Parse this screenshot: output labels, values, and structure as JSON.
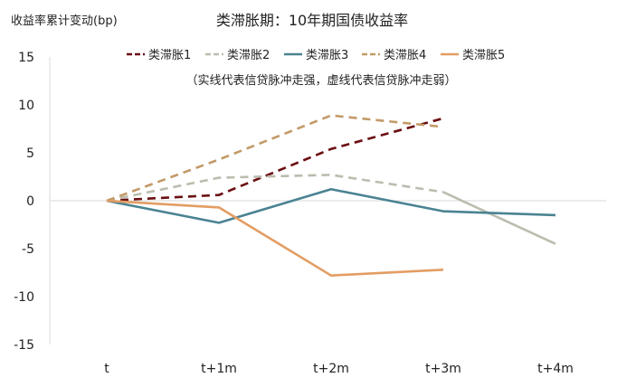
{
  "chart_data": {
    "type": "line",
    "title": "类滞胀期：10年期国债收益率",
    "ylabel": "收益率累计变动(bp)",
    "xlabel": "",
    "categories": [
      "t",
      "t+1m",
      "t+2m",
      "t+3m",
      "t+4m"
    ],
    "ylim": [
      -15,
      15
    ],
    "yticks": [
      15,
      10,
      5,
      0,
      -5,
      -10,
      -15
    ],
    "note": "（实线代表信贷脉冲走强，虚线代表信贷脉冲走弱）",
    "series": [
      {
        "name": "类滞胀1",
        "color": "#6b0f12",
        "segments": [
          {
            "style": "dashed",
            "from": 0,
            "values": [
              0,
              0.6,
              5.4,
              8.6
            ]
          }
        ]
      },
      {
        "name": "类滞胀2",
        "color": "#bcbcaf",
        "segments": [
          {
            "style": "dashed",
            "from": 0,
            "values": [
              0,
              2.4,
              2.7,
              0.9
            ]
          },
          {
            "style": "solid",
            "from": 3,
            "values": [
              0.9,
              -4.5
            ]
          }
        ]
      },
      {
        "name": "类滞胀3",
        "color": "#4a8392",
        "segments": [
          {
            "style": "solid",
            "from": 0,
            "values": [
              0,
              -2.3,
              1.2,
              -1.1,
              -1.5
            ]
          }
        ]
      },
      {
        "name": "类滞胀4",
        "color": "#c29a68",
        "segments": [
          {
            "style": "dashed",
            "from": 0,
            "values": [
              0,
              4.3,
              8.9,
              7.7
            ]
          }
        ]
      },
      {
        "name": "类滞胀5",
        "color": "#e39d63",
        "segments": [
          {
            "style": "solid",
            "from": 0,
            "values": [
              0,
              -0.7,
              -7.8,
              -7.2
            ]
          }
        ]
      }
    ]
  }
}
